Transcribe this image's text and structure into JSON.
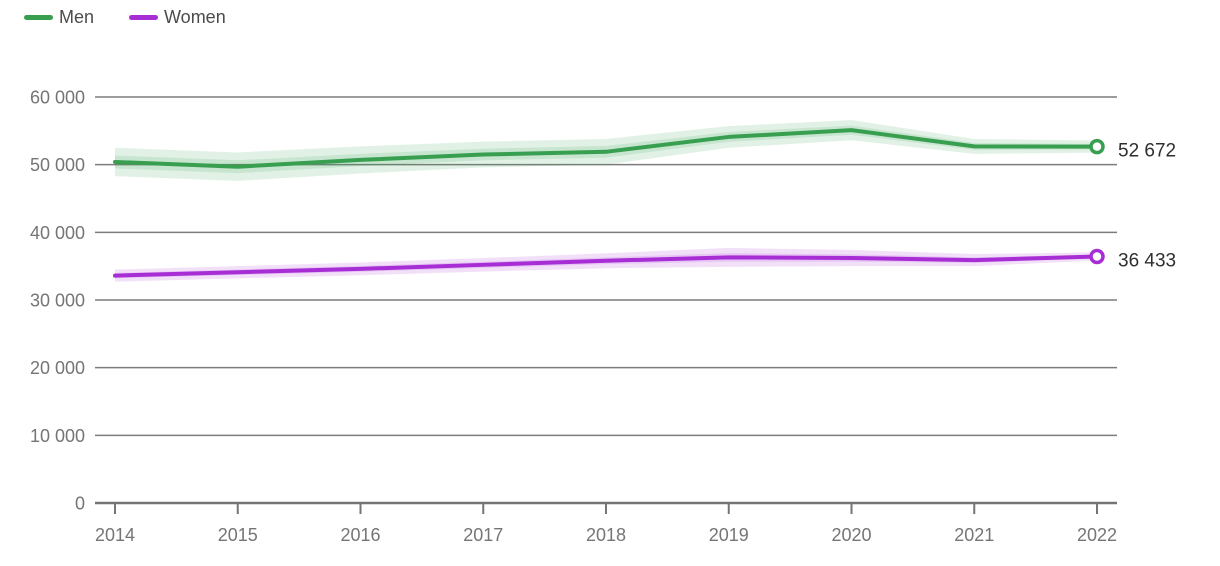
{
  "chart_data": {
    "type": "line",
    "categories": [
      "2014",
      "2015",
      "2016",
      "2017",
      "2018",
      "2019",
      "2020",
      "2021",
      "2022"
    ],
    "series": [
      {
        "name": "Men",
        "color": "#389e50",
        "values": [
          50400,
          49700,
          50700,
          51500,
          51900,
          54100,
          55100,
          52700,
          52672
        ],
        "ci": [
          2100,
          2100,
          2000,
          1900,
          1900,
          1600,
          1500,
          1100,
          900
        ],
        "end_label": "52 672"
      },
      {
        "name": "Women",
        "color": "#a72dd4",
        "values": [
          33600,
          34100,
          34600,
          35200,
          35800,
          36300,
          36200,
          35900,
          36433
        ],
        "ci": [
          900,
          900,
          950,
          1000,
          1100,
          1400,
          1200,
          900,
          600
        ],
        "end_label": "36 433"
      }
    ],
    "title": "",
    "xlabel": "",
    "ylabel": "",
    "ylim": [
      0,
      60000
    ],
    "ytick_values": [
      0,
      10000,
      20000,
      30000,
      40000,
      50000,
      60000
    ],
    "ytick_labels": [
      "0",
      "10 000",
      "20 000",
      "30 000",
      "40 000",
      "50 000",
      "60 000"
    ],
    "grid": true,
    "band_style": "confidence-interval",
    "legend_position": "top-left",
    "colors": {
      "grid": "#7c7c7c",
      "axis": "#757575",
      "tick_label": "#757575",
      "end_label": "#2f2f2f",
      "background": "#ffffff"
    }
  }
}
